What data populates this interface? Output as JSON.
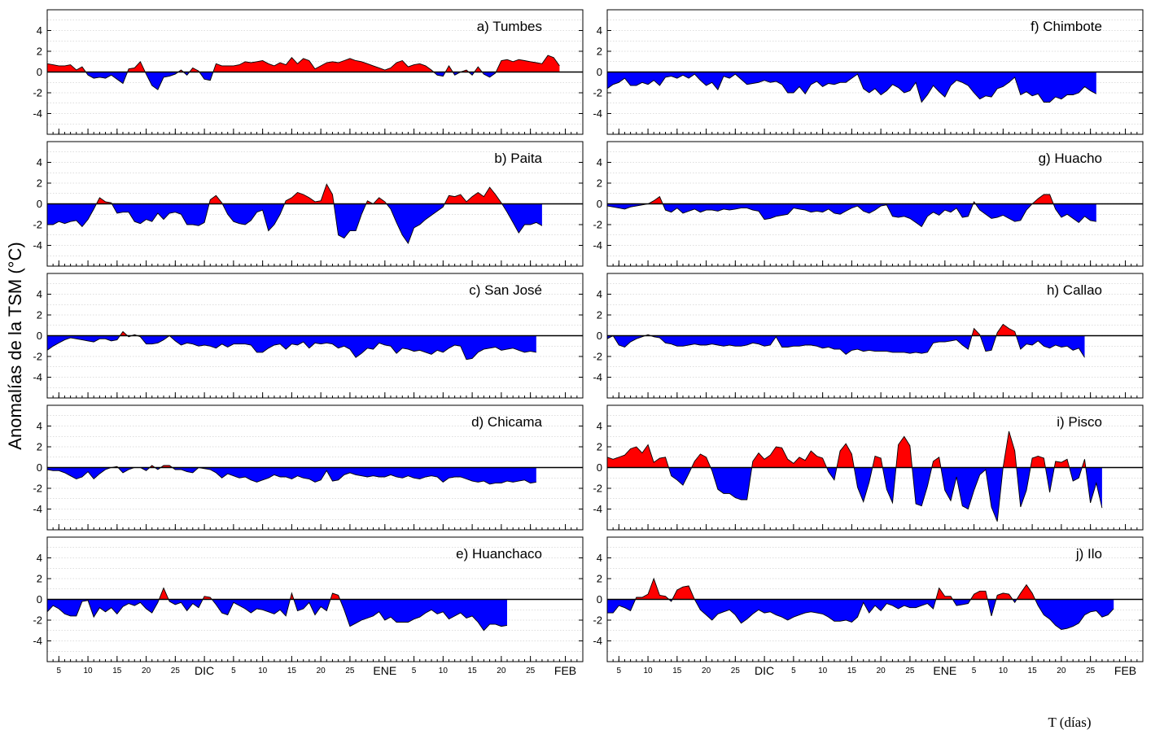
{
  "colors": {
    "positive": "#ff0000",
    "negative": "#0000ff",
    "outline": "#000000"
  },
  "axes": {
    "ylabel": "Anomalías de la TSM (°C)",
    "xlabel": "T (días)",
    "yticks": [
      "4",
      "2",
      "0",
      "-2",
      "-4"
    ],
    "ylim": [
      -6,
      6
    ],
    "xlim": [
      3,
      95
    ]
  },
  "x_ticks": [
    {
      "x": 5,
      "label": "5"
    },
    {
      "x": 10,
      "label": "10"
    },
    {
      "x": 15,
      "label": "15"
    },
    {
      "x": 20,
      "label": "20"
    },
    {
      "x": 25,
      "label": "25"
    },
    {
      "x": 30,
      "label": "DIC"
    },
    {
      "x": 35,
      "label": "5"
    },
    {
      "x": 40,
      "label": "10"
    },
    {
      "x": 45,
      "label": "15"
    },
    {
      "x": 50,
      "label": "20"
    },
    {
      "x": 55,
      "label": "25"
    },
    {
      "x": 61,
      "label": "ENE"
    },
    {
      "x": 66,
      "label": "5"
    },
    {
      "x": 71,
      "label": "10"
    },
    {
      "x": 76,
      "label": "15"
    },
    {
      "x": 81,
      "label": "20"
    },
    {
      "x": 86,
      "label": "25"
    },
    {
      "x": 92,
      "label": "FEB"
    }
  ],
  "chart_data": [
    {
      "type": "area",
      "title": "a) Tumbes",
      "x_start": 3,
      "y": [
        0.8,
        0.7,
        0.6,
        0.6,
        0.7,
        0.2,
        0.5,
        -0.3,
        -0.6,
        -0.5,
        -0.6,
        -0.3,
        -0.7,
        -1.1,
        0.3,
        0.4,
        1.0,
        -0.2,
        -1.3,
        -1.7,
        -0.5,
        -0.4,
        -0.2,
        0.2,
        -0.3,
        0.4,
        0.1,
        -0.7,
        -0.8,
        0.8,
        0.6,
        0.6,
        0.6,
        0.7,
        1.0,
        0.9,
        1.0,
        1.1,
        0.8,
        0.6,
        0.9,
        0.7,
        1.4,
        0.8,
        1.3,
        1.1,
        0.3,
        0.6,
        0.9,
        1.0,
        0.9,
        1.1,
        1.3,
        1.1,
        1.0,
        0.8,
        0.6,
        0.4,
        0.2,
        0.4,
        0.9,
        1.1,
        0.5,
        0.7,
        0.8,
        0.6,
        0.2,
        -0.3,
        -0.4,
        0.6,
        -0.3,
        0.0,
        0.2,
        -0.3,
        0.5,
        -0.2,
        -0.5,
        -0.1,
        1.1,
        1.2,
        1.0,
        1.2,
        1.1,
        1.0,
        0.9,
        0.8,
        1.6,
        1.4,
        0.6
      ]
    },
    {
      "type": "area",
      "title": "b) Paita",
      "x_start": 3,
      "y": [
        -2.0,
        -2.0,
        -1.7,
        -1.9,
        -1.7,
        -1.6,
        -2.2,
        -1.5,
        -0.5,
        0.6,
        0.2,
        0.1,
        -0.9,
        -0.8,
        -0.8,
        -1.7,
        -1.9,
        -1.5,
        -1.7,
        -0.9,
        -1.5,
        -0.9,
        -0.8,
        -1.0,
        -2.0,
        -2.0,
        -2.1,
        -1.8,
        0.4,
        0.8,
        0.1,
        -1.0,
        -1.7,
        -1.9,
        -2.0,
        -1.6,
        -0.8,
        -0.6,
        -2.6,
        -2.0,
        -1.0,
        0.3,
        0.6,
        1.1,
        0.9,
        0.6,
        0.2,
        0.3,
        1.9,
        0.9,
        -3.0,
        -3.3,
        -2.6,
        -2.6,
        -1.0,
        0.3,
        0.0,
        0.6,
        0.2,
        -0.5,
        -1.8,
        -3.0,
        -3.8,
        -2.3,
        -2.0,
        -1.5,
        -1.1,
        -0.7,
        -0.3,
        0.8,
        0.7,
        0.9,
        0.2,
        0.7,
        1.1,
        0.7,
        1.6,
        0.9,
        0.1,
        -0.8,
        -1.8,
        -2.8,
        -2.0,
        -2.0,
        -1.8,
        -2.1
      ]
    },
    {
      "type": "area",
      "title": "c) San José",
      "x_start": 3,
      "y": [
        -1.4,
        -1.0,
        -0.7,
        -0.4,
        -0.2,
        -0.3,
        -0.4,
        -0.5,
        -0.6,
        -0.3,
        -0.3,
        -0.5,
        -0.4,
        0.4,
        -0.1,
        0.1,
        -0.1,
        -0.8,
        -0.8,
        -0.7,
        -0.4,
        0.0,
        -0.5,
        -0.9,
        -0.7,
        -0.8,
        -1.0,
        -0.9,
        -1.0,
        -1.2,
        -0.8,
        -1.1,
        -0.8,
        -0.8,
        -0.8,
        -0.9,
        -1.6,
        -1.6,
        -1.2,
        -0.9,
        -0.8,
        -1.3,
        -0.8,
        -0.9,
        -0.6,
        -1.2,
        -0.7,
        -0.8,
        -0.7,
        -0.8,
        -1.2,
        -1.0,
        -1.3,
        -2.1,
        -1.7,
        -1.2,
        -1.3,
        -0.7,
        -0.9,
        -1.0,
        -1.7,
        -1.2,
        -1.3,
        -1.5,
        -1.4,
        -1.6,
        -1.8,
        -1.4,
        -1.6,
        -1.2,
        -0.9,
        -1.0,
        -2.3,
        -2.2,
        -1.6,
        -1.3,
        -1.2,
        -1.1,
        -1.4,
        -1.3,
        -1.2,
        -1.4,
        -1.6,
        -1.5,
        -1.6
      ]
    },
    {
      "type": "area",
      "title": "d) Chicama",
      "x_start": 3,
      "y": [
        -0.2,
        -0.3,
        -0.3,
        -0.5,
        -0.8,
        -1.1,
        -0.9,
        -0.4,
        -1.1,
        -0.6,
        -0.2,
        0.0,
        0.1,
        -0.5,
        -0.2,
        0.0,
        0.0,
        -0.3,
        0.2,
        -0.2,
        0.2,
        0.2,
        -0.2,
        -0.2,
        -0.4,
        -0.5,
        0.0,
        -0.1,
        -0.2,
        -0.5,
        -1.0,
        -0.6,
        -0.8,
        -1.0,
        -0.9,
        -1.2,
        -1.4,
        -1.2,
        -1.0,
        -0.7,
        -0.9,
        -0.9,
        -1.1,
        -0.8,
        -1.0,
        -1.1,
        -1.4,
        -1.2,
        -0.3,
        -1.3,
        -1.2,
        -0.7,
        -0.5,
        -0.7,
        -0.8,
        -0.9,
        -0.8,
        -0.9,
        -0.9,
        -0.7,
        -0.9,
        -1.0,
        -0.8,
        -1.0,
        -1.1,
        -0.9,
        -0.8,
        -0.9,
        -1.4,
        -1.0,
        -0.9,
        -0.9,
        -1.1,
        -1.3,
        -1.4,
        -1.3,
        -1.6,
        -1.5,
        -1.5,
        -1.3,
        -1.4,
        -1.3,
        -1.2,
        -1.5,
        -1.4
      ]
    },
    {
      "type": "area",
      "title": "e) Huanchaco",
      "x_start": 3,
      "y": [
        -1.2,
        -0.6,
        -0.9,
        -1.4,
        -1.6,
        -1.6,
        -0.2,
        -0.1,
        -1.7,
        -0.8,
        -1.2,
        -0.8,
        -1.4,
        -0.7,
        -0.4,
        -0.6,
        -0.3,
        -0.9,
        -1.3,
        -0.3,
        1.1,
        -0.2,
        -0.5,
        -0.3,
        -1.1,
        -0.4,
        -0.8,
        0.3,
        0.2,
        -0.5,
        -1.3,
        -1.5,
        -0.3,
        -0.6,
        -0.9,
        -1.3,
        -0.9,
        -1.0,
        -1.2,
        -1.4,
        -1.0,
        -1.6,
        0.6,
        -1.1,
        -0.9,
        -0.3,
        -1.5,
        -0.7,
        -1.1,
        0.6,
        0.4,
        -1.0,
        -2.6,
        -2.3,
        -2.0,
        -1.8,
        -1.6,
        -1.2,
        -2.0,
        -1.7,
        -2.2,
        -2.2,
        -2.2,
        -1.9,
        -1.7,
        -1.3,
        -1.0,
        -1.4,
        -1.2,
        -1.9,
        -1.6,
        -1.3,
        -1.8,
        -1.6,
        -2.2,
        -3.0,
        -2.4,
        -2.4,
        -2.6,
        -2.5
      ]
    },
    {
      "type": "area",
      "title": "f) Chimbote",
      "x_start": 3,
      "y": [
        -1.6,
        -1.2,
        -1.0,
        -0.6,
        -1.3,
        -1.3,
        -1.0,
        -1.2,
        -0.8,
        -1.3,
        -0.5,
        -0.4,
        -0.6,
        -0.3,
        -0.6,
        -0.2,
        -0.8,
        -1.3,
        -1.0,
        -1.7,
        -0.4,
        -0.6,
        -0.2,
        -0.7,
        -1.2,
        -1.1,
        -1.0,
        -0.8,
        -1.0,
        -0.9,
        -1.2,
        -2.0,
        -2.0,
        -1.4,
        -2.1,
        -1.2,
        -0.9,
        -1.4,
        -1.1,
        -1.2,
        -1.0,
        -1.0,
        -0.6,
        -0.2,
        -1.6,
        -2.0,
        -1.6,
        -2.2,
        -1.8,
        -1.2,
        -1.5,
        -2.0,
        -1.8,
        -1.0,
        -2.9,
        -2.2,
        -1.3,
        -1.9,
        -2.4,
        -1.3,
        -0.8,
        -1.0,
        -1.3,
        -2.0,
        -2.6,
        -2.3,
        -2.4,
        -1.6,
        -1.4,
        -1.0,
        -0.5,
        -2.2,
        -1.9,
        -2.3,
        -2.1,
        -2.9,
        -2.9,
        -2.4,
        -2.6,
        -2.2,
        -2.2,
        -2.0,
        -1.4,
        -1.8,
        -2.1
      ]
    },
    {
      "type": "area",
      "title": "g) Huacho",
      "x_start": 3,
      "y": [
        -0.2,
        -0.3,
        -0.4,
        -0.5,
        -0.3,
        -0.2,
        -0.1,
        0.0,
        0.3,
        0.7,
        -0.6,
        -0.8,
        -0.4,
        -0.9,
        -0.7,
        -0.5,
        -0.8,
        -0.6,
        -0.6,
        -0.7,
        -0.5,
        -0.6,
        -0.5,
        -0.4,
        -0.4,
        -0.6,
        -0.7,
        -1.5,
        -1.4,
        -1.2,
        -1.1,
        -1.0,
        -0.4,
        -0.5,
        -0.6,
        -0.8,
        -0.7,
        -0.8,
        -0.5,
        -0.9,
        -1.0,
        -0.7,
        -0.4,
        -0.2,
        -0.7,
        -0.9,
        -0.6,
        -0.2,
        -0.1,
        -1.2,
        -1.3,
        -1.2,
        -1.4,
        -1.8,
        -2.2,
        -1.2,
        -0.8,
        -1.1,
        -0.6,
        -0.8,
        -0.4,
        -1.3,
        -1.2,
        0.2,
        -0.6,
        -1.0,
        -1.4,
        -1.3,
        -1.1,
        -1.4,
        -1.7,
        -1.6,
        -0.6,
        0.0,
        0.5,
        0.9,
        0.9,
        -0.5,
        -1.3,
        -1.0,
        -1.4,
        -1.8,
        -1.2,
        -1.6,
        -1.7
      ]
    },
    {
      "type": "area",
      "title": "h) Callao",
      "x_start": 3,
      "y": [
        -0.3,
        0.0,
        -0.9,
        -1.1,
        -0.6,
        -0.3,
        -0.1,
        0.1,
        -0.1,
        -0.2,
        -0.7,
        -0.8,
        -1.0,
        -1.0,
        -0.9,
        -0.8,
        -0.9,
        -0.9,
        -0.8,
        -0.9,
        -1.0,
        -0.9,
        -1.0,
        -1.0,
        -0.9,
        -0.7,
        -0.8,
        -1.0,
        -0.9,
        -0.1,
        -1.1,
        -1.1,
        -1.0,
        -1.0,
        -0.9,
        -0.9,
        -1.0,
        -1.2,
        -1.1,
        -1.3,
        -1.3,
        -1.8,
        -1.4,
        -1.3,
        -1.5,
        -1.4,
        -1.5,
        -1.5,
        -1.5,
        -1.6,
        -1.6,
        -1.6,
        -1.7,
        -1.6,
        -1.7,
        -1.6,
        -0.7,
        -0.6,
        -0.6,
        -0.5,
        -0.4,
        -0.9,
        -1.3,
        0.7,
        0.1,
        -1.5,
        -1.4,
        0.3,
        1.1,
        0.7,
        0.4,
        -1.3,
        -0.8,
        -0.9,
        -0.5,
        -1.0,
        -1.2,
        -0.9,
        -1.1,
        -1.0,
        -1.4,
        -1.2,
        -2.1
      ]
    },
    {
      "type": "area",
      "title": "i) Pisco",
      "x_start": 3,
      "y": [
        1.0,
        0.8,
        1.0,
        1.2,
        1.8,
        2.0,
        1.4,
        2.2,
        0.5,
        0.9,
        1.0,
        -0.8,
        -1.2,
        -1.7,
        -0.6,
        0.6,
        1.3,
        1.0,
        -0.3,
        -2.1,
        -2.5,
        -2.5,
        -2.9,
        -3.1,
        -3.1,
        0.6,
        1.4,
        0.8,
        1.2,
        2.0,
        1.9,
        0.8,
        0.4,
        1.0,
        0.7,
        1.6,
        1.1,
        0.9,
        -0.4,
        -1.2,
        1.6,
        2.3,
        1.3,
        -1.9,
        -3.3,
        -1.4,
        1.1,
        0.9,
        -2.1,
        -3.4,
        2.2,
        3.0,
        2.1,
        -3.5,
        -3.7,
        -1.8,
        0.6,
        1.0,
        -2.2,
        -3.2,
        -0.9,
        -3.7,
        -4.0,
        -2.2,
        -0.7,
        -0.2,
        -3.8,
        -5.2,
        0.0,
        3.5,
        1.6,
        -3.8,
        -2.2,
        0.9,
        1.1,
        0.9,
        -2.4,
        0.6,
        0.5,
        0.8,
        -1.3,
        -1.0,
        0.8,
        -3.4,
        -1.5,
        -3.9
      ]
    },
    {
      "type": "area",
      "title": "j) Ilo",
      "x_start": 3,
      "y": [
        -1.3,
        -1.3,
        -0.6,
        -0.8,
        -1.1,
        0.2,
        0.2,
        0.5,
        2.0,
        0.4,
        0.3,
        -0.2,
        0.9,
        1.2,
        1.3,
        0.0,
        -1.0,
        -1.5,
        -2.0,
        -1.4,
        -1.2,
        -1.0,
        -1.5,
        -2.3,
        -1.9,
        -1.4,
        -1.0,
        -1.3,
        -1.2,
        -1.5,
        -1.7,
        -2.0,
        -1.7,
        -1.5,
        -1.3,
        -1.2,
        -1.3,
        -1.4,
        -1.7,
        -2.1,
        -2.1,
        -2.0,
        -2.2,
        -1.7,
        -0.3,
        -1.3,
        -0.6,
        -1.1,
        -0.4,
        -0.6,
        -0.9,
        -0.6,
        -0.8,
        -0.8,
        -0.6,
        -0.4,
        -0.9,
        1.1,
        0.3,
        0.3,
        -0.6,
        -0.5,
        -0.4,
        0.5,
        0.8,
        0.8,
        -1.6,
        0.4,
        0.6,
        0.5,
        -0.3,
        0.6,
        1.4,
        0.6,
        -0.6,
        -1.5,
        -1.9,
        -2.5,
        -2.9,
        -2.8,
        -2.6,
        -2.3,
        -1.5,
        -1.2,
        -1.1,
        -1.7,
        -1.5,
        -0.9
      ]
    }
  ]
}
